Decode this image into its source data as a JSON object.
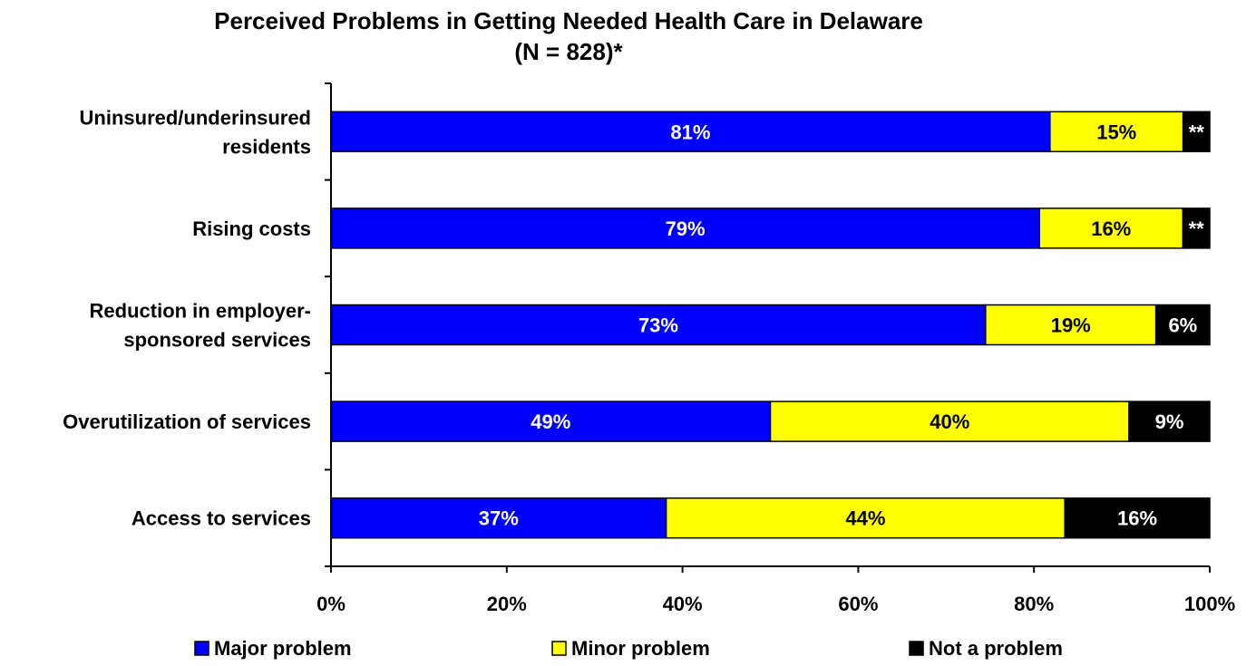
{
  "chart_data": {
    "type": "bar",
    "orientation": "horizontal",
    "stacked": true,
    "title": "Perceived Problems in Getting Needed Health Care in Delaware",
    "subtitle": "(N = 828)*",
    "categories": [
      [
        "Uninsured/underinsured",
        "residents"
      ],
      [
        "Rising costs"
      ],
      [
        "Reduction in employer-",
        "sponsored services"
      ],
      [
        "Overutilization of services"
      ],
      [
        "Access to services"
      ]
    ],
    "series": [
      {
        "name": "Major problem",
        "color": "#0000FF",
        "label_color": "#FFFFFF",
        "values": [
          81,
          79,
          73,
          49,
          37
        ],
        "labels": [
          "81%",
          "79%",
          "73%",
          "49%",
          "37%"
        ]
      },
      {
        "name": "Minor problem",
        "color": "#FFFF00",
        "label_color": "#000000",
        "values": [
          15,
          16,
          19,
          40,
          44
        ],
        "labels": [
          "15%",
          "16%",
          "19%",
          "40%",
          "44%"
        ]
      },
      {
        "name": "Not a problem",
        "color": "#000000",
        "label_color": "#FFFFFF",
        "values": [
          3,
          3,
          6,
          9,
          16
        ],
        "labels": [
          "**",
          "**",
          "6%",
          "9%",
          "16%"
        ]
      }
    ],
    "xlim": [
      0,
      100
    ],
    "x_ticks": [
      "0%",
      "20%",
      "40%",
      "60%",
      "80%",
      "100%"
    ],
    "grid": false,
    "legend_position": "bottom"
  }
}
